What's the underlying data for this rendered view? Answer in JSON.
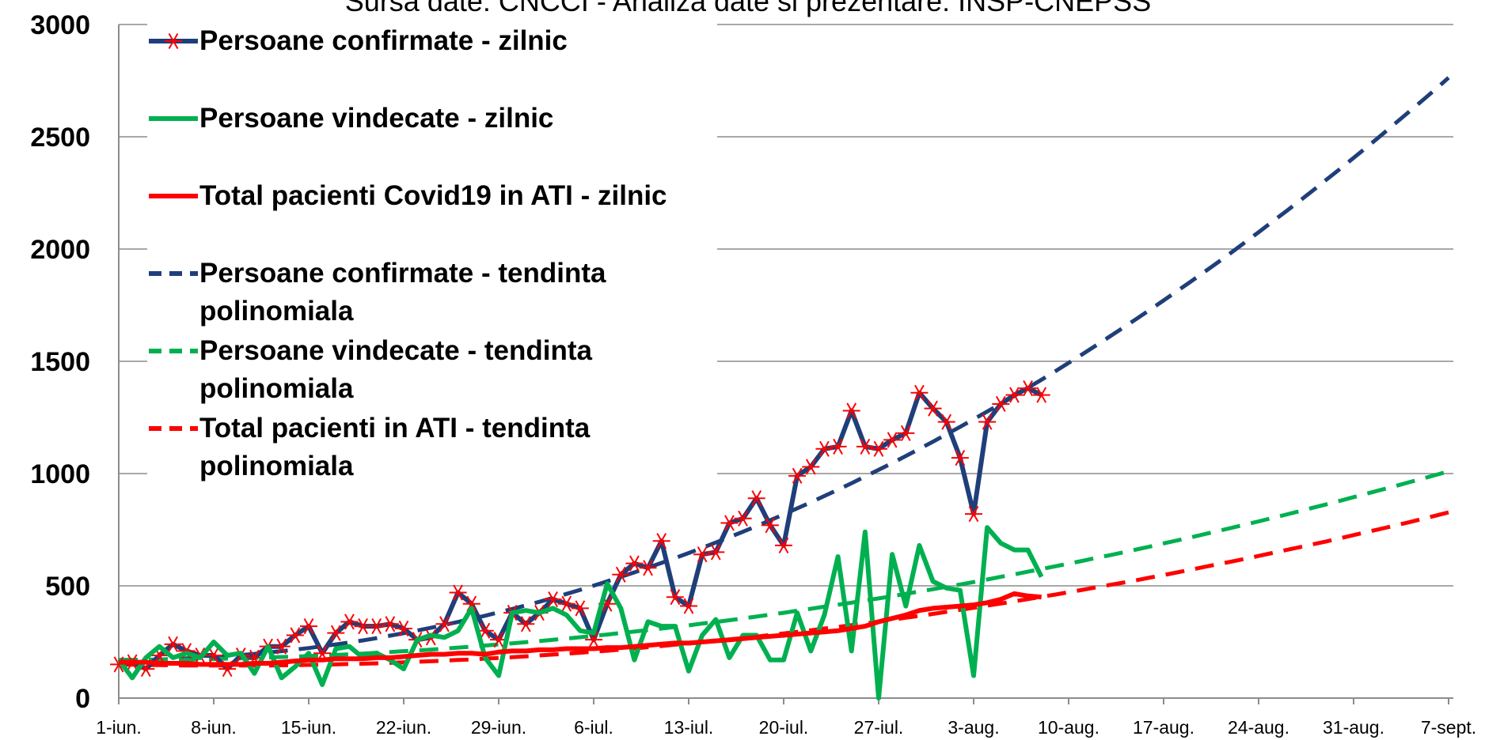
{
  "chart_data": {
    "type": "line",
    "subtitle": "Sursa date: CNCCI -  Analiza date si prezentare: INSP-CNEPSS",
    "categories": [
      "1-iun.",
      null,
      null,
      null,
      null,
      null,
      null,
      "8-iun.",
      null,
      null,
      null,
      null,
      null,
      null,
      "15-iun.",
      null,
      null,
      null,
      null,
      null,
      null,
      "22-iun.",
      null,
      null,
      null,
      null,
      null,
      null,
      "29-iun.",
      null,
      null,
      null,
      null,
      null,
      null,
      "6-iul.",
      null,
      null,
      null,
      null,
      null,
      null,
      "13-iul.",
      null,
      null,
      null,
      null,
      null,
      null,
      "20-iul.",
      null,
      null,
      null,
      null,
      null,
      null,
      "27-iul.",
      null,
      null,
      null,
      null,
      null,
      null,
      "3-aug.",
      null,
      null,
      null,
      null,
      null,
      null,
      "10-aug.",
      null,
      null,
      null,
      null,
      null,
      null,
      "17-aug.",
      null,
      null,
      null,
      null,
      null,
      null,
      "24-aug.",
      null,
      null,
      null,
      null,
      null,
      null,
      "31-aug.",
      null,
      null,
      null,
      null,
      null,
      null,
      "7-sept."
    ],
    "ylim": [
      0,
      3000
    ],
    "yticks": [
      0,
      500,
      1000,
      1500,
      2000,
      2500,
      3000
    ],
    "grid": true,
    "legend": "upper-left",
    "series": [
      {
        "name": "Persoane confirmate - zilnic",
        "color": "#1f3f7a",
        "marker": "asterisk",
        "marker_color": "#ff0000",
        "dash": "solid",
        "values": [
          150,
          160,
          130,
          190,
          240,
          210,
          190,
          190,
          130,
          190,
          180,
          230,
          230,
          280,
          320,
          200,
          290,
          340,
          320,
          320,
          330,
          310,
          260,
          270,
          330,
          470,
          420,
          300,
          260,
          380,
          330,
          380,
          440,
          420,
          400,
          260,
          420,
          550,
          600,
          580,
          700,
          450,
          410,
          640,
          650,
          780,
          800,
          890,
          770,
          680,
          990,
          1030,
          1110,
          1120,
          1280,
          1120,
          1110,
          1150,
          1180,
          1360,
          1290,
          1230,
          1070,
          820,
          1230,
          1310,
          1350,
          1380,
          1350,
          null,
          null,
          null,
          null,
          null,
          null,
          null,
          null,
          null,
          null,
          null,
          null,
          null,
          null,
          null,
          null,
          null,
          null,
          null,
          null,
          null,
          null,
          null,
          null,
          null,
          null,
          null,
          null,
          null,
          null
        ]
      },
      {
        "name": "Persoane vindecate - zilnic",
        "color": "#00b050",
        "dash": "solid",
        "values": [
          170,
          90,
          180,
          230,
          180,
          200,
          180,
          250,
          190,
          200,
          110,
          230,
          90,
          140,
          200,
          60,
          220,
          230,
          180,
          200,
          170,
          130,
          260,
          280,
          270,
          300,
          400,
          180,
          100,
          380,
          390,
          380,
          400,
          370,
          300,
          290,
          510,
          400,
          170,
          340,
          320,
          320,
          120,
          280,
          350,
          180,
          280,
          280,
          170,
          170,
          380,
          210,
          370,
          630,
          210,
          740,
          0,
          640,
          410,
          680,
          520,
          490,
          480,
          100,
          760,
          690,
          660,
          660,
          540,
          null,
          null,
          null,
          null,
          null,
          null,
          null,
          null,
          null,
          null,
          null,
          null,
          null,
          null,
          null,
          null,
          null,
          null,
          null,
          null,
          null,
          null,
          null,
          null,
          null,
          null,
          null,
          null,
          null,
          null
        ]
      },
      {
        "name": "Total pacienti Covid19 in ATI - zilnic",
        "color": "#ff0000",
        "dash": "solid",
        "values": [
          160,
          160,
          160,
          155,
          155,
          155,
          150,
          150,
          150,
          150,
          155,
          155,
          160,
          165,
          170,
          170,
          175,
          175,
          175,
          180,
          180,
          185,
          190,
          195,
          195,
          200,
          200,
          195,
          205,
          210,
          210,
          215,
          215,
          220,
          220,
          220,
          225,
          225,
          230,
          235,
          240,
          245,
          245,
          250,
          255,
          260,
          265,
          270,
          275,
          280,
          285,
          290,
          295,
          300,
          310,
          320,
          340,
          355,
          370,
          390,
          400,
          405,
          410,
          415,
          425,
          440,
          465,
          455,
          450,
          null,
          null,
          null,
          null,
          null,
          null,
          null,
          null,
          null,
          null,
          null,
          null,
          null,
          null,
          null,
          null,
          null,
          null,
          null,
          null,
          null,
          null,
          null,
          null,
          null,
          null,
          null,
          null,
          null,
          null
        ]
      },
      {
        "name": "Persoane confirmate - tendinta polinomiala",
        "color": "#1f3f7a",
        "dash": "dashed",
        "values": [
          170,
          170,
          171,
          172,
          174,
          177,
          180,
          183,
          187,
          192,
          197,
          203,
          209,
          216,
          223,
          231,
          239,
          248,
          257,
          267,
          278,
          289,
          301,
          313,
          326,
          339,
          353,
          367,
          382,
          397,
          413,
          429,
          446,
          464,
          482,
          501,
          520,
          540,
          560,
          581,
          602,
          624,
          646,
          669,
          693,
          717,
          741,
          766,
          792,
          818,
          845,
          872,
          900,
          928,
          957,
          987,
          1017,
          1047,
          1078,
          1110,
          1142,
          1175,
          1208,
          1242,
          1276,
          1311,
          1346,
          1382,
          1418,
          1455,
          1493,
          1531,
          1570,
          1609,
          1649,
          1689,
          1730,
          1771,
          1813,
          1855,
          1898,
          1941,
          1985,
          2030,
          2075,
          2121,
          2167,
          2213,
          2261,
          2309,
          2357,
          2406,
          2455,
          2505,
          2556,
          2607,
          2658,
          2710,
          2763
        ]
      },
      {
        "name": "Persoane vindecate - tendinta polinomiala",
        "color": "#00b050",
        "dash": "dashed",
        "values": [
          170,
          170,
          170,
          171,
          171,
          172,
          173,
          174,
          176,
          177,
          179,
          181,
          183,
          185,
          187,
          190,
          192,
          195,
          198,
          202,
          205,
          209,
          212,
          216,
          220,
          225,
          229,
          234,
          239,
          244,
          249,
          254,
          260,
          265,
          271,
          277,
          283,
          290,
          296,
          303,
          310,
          317,
          324,
          332,
          339,
          347,
          355,
          363,
          372,
          380,
          389,
          398,
          407,
          416,
          425,
          435,
          444,
          454,
          464,
          475,
          485,
          496,
          506,
          517,
          528,
          540,
          551,
          563,
          575,
          587,
          599,
          611,
          624,
          636,
          649,
          662,
          675,
          689,
          702,
          716,
          730,
          744,
          758,
          773,
          787,
          802,
          817,
          832,
          848,
          863,
          879,
          895,
          911,
          927,
          943,
          960,
          976,
          993,
          1010
        ]
      },
      {
        "name": "Total pacienti in ATI - tendinta polinomiala",
        "color": "#ff0000",
        "dash": "dashed",
        "values": [
          150,
          149,
          148,
          147,
          146,
          145,
          145,
          145,
          145,
          145,
          145,
          145,
          146,
          147,
          148,
          149,
          150,
          152,
          153,
          155,
          157,
          159,
          162,
          164,
          167,
          170,
          172,
          176,
          179,
          182,
          186,
          190,
          194,
          198,
          202,
          207,
          211,
          216,
          221,
          227,
          232,
          238,
          243,
          249,
          255,
          261,
          268,
          274,
          281,
          288,
          295,
          302,
          310,
          317,
          325,
          333,
          341,
          349,
          358,
          366,
          375,
          384,
          393,
          402,
          412,
          421,
          431,
          441,
          451,
          461,
          472,
          482,
          493,
          504,
          514,
          525,
          537,
          548,
          560,
          572,
          584,
          596,
          608,
          620,
          633,
          646,
          659,
          672,
          685,
          698,
          712,
          726,
          740,
          754,
          768,
          782,
          797,
          812,
          827
        ]
      }
    ]
  }
}
